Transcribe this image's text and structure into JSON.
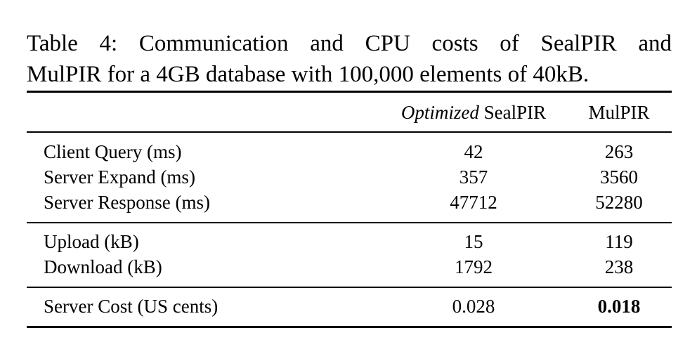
{
  "caption": {
    "line1": "Table 4: Communication and CPU costs of SealPIR and",
    "line2": "MulPIR for a 4GB database with 100,000 elements of 40kB."
  },
  "table": {
    "header": {
      "col1_italic": "Optimized",
      "col1_rest": " SealPIR",
      "col2": "MulPIR"
    },
    "rows": [
      {
        "label": "Client Query (ms)",
        "sealpir": "42",
        "mulpir": "263"
      },
      {
        "label": "Server Expand (ms)",
        "sealpir": "357",
        "mulpir": "3560"
      },
      {
        "label": "Server Response (ms)",
        "sealpir": "47712",
        "mulpir": "52280"
      },
      {
        "label": "Upload (kB)",
        "sealpir": "15",
        "mulpir": "119"
      },
      {
        "label": "Download (kB)",
        "sealpir": "1792",
        "mulpir": "238"
      },
      {
        "label": "Server Cost (US cents)",
        "sealpir": "0.028",
        "mulpir": "0.018"
      }
    ]
  }
}
